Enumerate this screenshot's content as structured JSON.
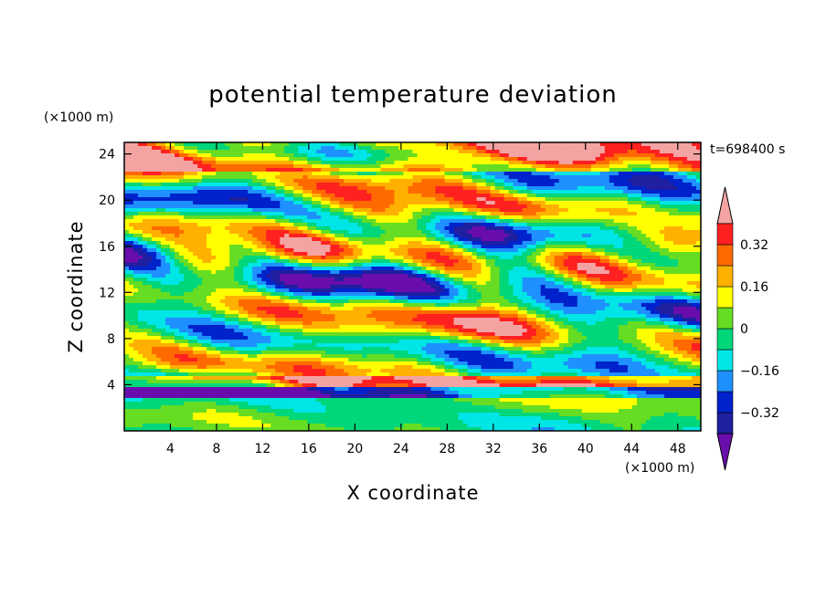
{
  "chart_data": {
    "type": "heatmap",
    "title": "potential temperature deviation",
    "xlabel": "X coordinate",
    "ylabel": "Z coordinate",
    "x_unit": "(×1000 m)",
    "y_unit": "(×1000 m)",
    "time_label": "t=698400 s",
    "xlim": [
      0,
      50
    ],
    "ylim": [
      0,
      25
    ],
    "x_ticks": [
      4,
      8,
      12,
      16,
      20,
      24,
      28,
      32,
      36,
      40,
      44,
      48
    ],
    "y_ticks": [
      4,
      8,
      12,
      16,
      20,
      24
    ],
    "colorbar": {
      "levels": [
        -0.4,
        -0.32,
        -0.24,
        -0.16,
        -0.08,
        0,
        0.08,
        0.16,
        0.24,
        0.32,
        0.4
      ],
      "tick_labels": [
        "0.32",
        "0.16",
        "0",
        "−0.16",
        "−0.32"
      ],
      "tick_values": [
        0.32,
        0.16,
        0,
        -0.16,
        -0.32
      ],
      "colors": [
        "#6a0dad",
        "#1f1fa0",
        "#0022cc",
        "#1e90ff",
        "#00e5e5",
        "#00d67a",
        "#66dd22",
        "#ffff00",
        "#ffb000",
        "#ff6a00",
        "#ff2020",
        "#f4a3a3"
      ]
    }
  }
}
